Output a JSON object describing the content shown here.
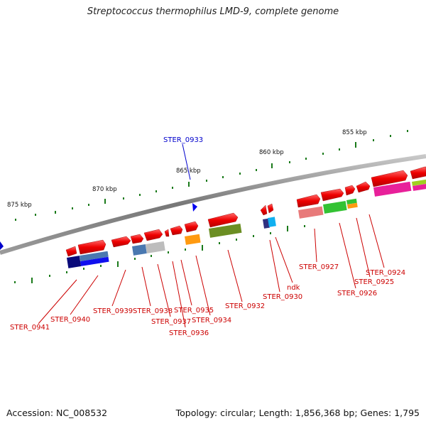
{
  "title": "Streptococcus thermophilus LMD-9, complete genome",
  "footer": {
    "accession": "Accession: NC_008532",
    "topology": "Topology: circular; Length: 1,856,368 bp; Genes: 1,795"
  },
  "ticks": [
    {
      "label": "875 kbp",
      "kbp": 875
    },
    {
      "label": "870 kbp",
      "kbp": 870
    },
    {
      "label": "865 kbp",
      "kbp": 865
    },
    {
      "label": "860 kbp",
      "kbp": 860
    },
    {
      "label": "855 kbp",
      "kbp": 855
    }
  ],
  "genes": [
    {
      "label": "STER_0941",
      "color": "#cc0000"
    },
    {
      "label": "STER_0940",
      "color": "#cc0000"
    },
    {
      "label": "STER_0939",
      "color": "#cc0000"
    },
    {
      "label": "STER_0938",
      "color": "#cc0000"
    },
    {
      "label": "STER_0937",
      "color": "#cc0000"
    },
    {
      "label": "STER_0936",
      "color": "#cc0000"
    },
    {
      "label": "STER_0935",
      "color": "#cc0000"
    },
    {
      "label": "STER_0934",
      "color": "#cc0000"
    },
    {
      "label": "STER_0932",
      "color": "#cc0000"
    },
    {
      "label": "STER_0930",
      "color": "#cc0000"
    },
    {
      "label": "ndk",
      "color": "#cc0000"
    },
    {
      "label": "STER_0927",
      "color": "#cc0000"
    },
    {
      "label": "STER_0926",
      "color": "#cc0000"
    },
    {
      "label": "STER_0925",
      "color": "#cc0000"
    },
    {
      "label": "STER_0924",
      "color": "#cc0000"
    },
    {
      "label": "STER_0933",
      "color": "#0000cc"
    }
  ],
  "colors": {
    "backbone": "#8a8a8a",
    "forward_gene": "#ee0000",
    "reverse_gene": "#0000cc",
    "gc_skew": "#1a7a1a",
    "label_red": "#cc0000",
    "label_blue": "#0000cc"
  }
}
